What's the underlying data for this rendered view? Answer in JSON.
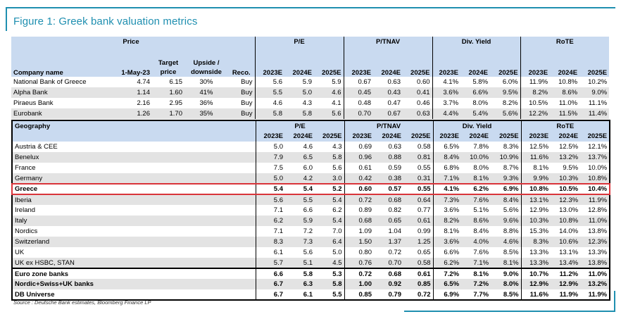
{
  "title": "Figure 1: Greek bank valuation metrics",
  "source": "Source : Deutsche Bank estimates, Bloomberg Finance LP",
  "accent_color": "#1f8fb0",
  "header_fill": "#c9daf0",
  "highlight_color": "#d9343a",
  "table1": {
    "group_headers": {
      "price": "Price",
      "pe": "P/E",
      "ptnav": "P/TNAV",
      "dy": "Div. Yield",
      "rote": "RoTE"
    },
    "col_headers": {
      "company": "Company name",
      "date": "1-May-23",
      "target": "Target price",
      "upside": "Upside / downside",
      "reco": "Reco.",
      "years": [
        "2023E",
        "2024E",
        "2025E"
      ]
    },
    "rows": [
      {
        "name": "National Bank of Greece",
        "price": "4.74",
        "target": "6.15",
        "upside": "30%",
        "reco": "Buy",
        "pe": [
          "5.6",
          "5.9",
          "5.9"
        ],
        "ptnav": [
          "0.67",
          "0.63",
          "0.60"
        ],
        "dy": [
          "4.1%",
          "5.8%",
          "6.0%"
        ],
        "rote": [
          "11.9%",
          "10.8%",
          "10.2%"
        ]
      },
      {
        "name": "Alpha Bank",
        "price": "1.14",
        "target": "1.60",
        "upside": "41%",
        "reco": "Buy",
        "pe": [
          "5.5",
          "5.0",
          "4.6"
        ],
        "ptnav": [
          "0.45",
          "0.43",
          "0.41"
        ],
        "dy": [
          "3.6%",
          "6.6%",
          "9.5%"
        ],
        "rote": [
          "8.2%",
          "8.6%",
          "9.0%"
        ]
      },
      {
        "name": "Piraeus Bank",
        "price": "2.16",
        "target": "2.95",
        "upside": "36%",
        "reco": "Buy",
        "pe": [
          "4.6",
          "4.3",
          "4.1"
        ],
        "ptnav": [
          "0.48",
          "0.47",
          "0.46"
        ],
        "dy": [
          "3.7%",
          "8.0%",
          "8.2%"
        ],
        "rote": [
          "10.5%",
          "11.0%",
          "11.1%"
        ]
      },
      {
        "name": "Eurobank",
        "price": "1.26",
        "target": "1.70",
        "upside": "35%",
        "reco": "Buy",
        "pe": [
          "5.8",
          "5.8",
          "5.6"
        ],
        "ptnav": [
          "0.70",
          "0.67",
          "0.63"
        ],
        "dy": [
          "4.4%",
          "5.4%",
          "5.6%"
        ],
        "rote": [
          "12.2%",
          "11.5%",
          "11.4%"
        ]
      }
    ]
  },
  "table2": {
    "geo_header": "Geography",
    "group_headers": {
      "pe": "P/E",
      "ptnav": "P/TNAV",
      "dy": "Div. Yield",
      "rote": "RoTE"
    },
    "years": [
      "2023E",
      "2024E",
      "2025E"
    ],
    "rows": [
      {
        "name": "Austria & CEE",
        "pe": [
          "5.0",
          "4.6",
          "4.3"
        ],
        "ptnav": [
          "0.69",
          "0.63",
          "0.58"
        ],
        "dy": [
          "6.5%",
          "7.8%",
          "8.3%"
        ],
        "rote": [
          "12.5%",
          "12.5%",
          "12.1%"
        ]
      },
      {
        "name": "Benelux",
        "pe": [
          "7.9",
          "6.5",
          "5.8"
        ],
        "ptnav": [
          "0.96",
          "0.88",
          "0.81"
        ],
        "dy": [
          "8.4%",
          "10.0%",
          "10.9%"
        ],
        "rote": [
          "11.6%",
          "13.2%",
          "13.7%"
        ]
      },
      {
        "name": "France",
        "pe": [
          "7.5",
          "6.0",
          "5.6"
        ],
        "ptnav": [
          "0.61",
          "0.59",
          "0.55"
        ],
        "dy": [
          "6.8%",
          "8.0%",
          "8.7%"
        ],
        "rote": [
          "8.1%",
          "9.5%",
          "10.0%"
        ]
      },
      {
        "name": "Germany",
        "pe": [
          "5.0",
          "4.2",
          "3.0"
        ],
        "ptnav": [
          "0.42",
          "0.38",
          "0.31"
        ],
        "dy": [
          "7.1%",
          "8.1%",
          "9.3%"
        ],
        "rote": [
          "9.9%",
          "10.3%",
          "10.8%"
        ]
      },
      {
        "name": "Greece",
        "pe": [
          "5.4",
          "5.4",
          "5.2"
        ],
        "ptnav": [
          "0.60",
          "0.57",
          "0.55"
        ],
        "dy": [
          "4.1%",
          "6.2%",
          "6.9%"
        ],
        "rote": [
          "10.8%",
          "10.5%",
          "10.4%"
        ]
      },
      {
        "name": "Iberia",
        "pe": [
          "5.6",
          "5.5",
          "5.4"
        ],
        "ptnav": [
          "0.72",
          "0.68",
          "0.64"
        ],
        "dy": [
          "7.3%",
          "7.6%",
          "8.4%"
        ],
        "rote": [
          "13.1%",
          "12.3%",
          "11.9%"
        ]
      },
      {
        "name": "Ireland",
        "pe": [
          "7.1",
          "6.6",
          "6.2"
        ],
        "ptnav": [
          "0.89",
          "0.82",
          "0.77"
        ],
        "dy": [
          "3.6%",
          "5.1%",
          "5.6%"
        ],
        "rote": [
          "12.9%",
          "13.0%",
          "12.8%"
        ]
      },
      {
        "name": "Italy",
        "pe": [
          "6.2",
          "5.9",
          "5.4"
        ],
        "ptnav": [
          "0.68",
          "0.65",
          "0.61"
        ],
        "dy": [
          "8.2%",
          "8.6%",
          "9.6%"
        ],
        "rote": [
          "10.3%",
          "10.8%",
          "11.0%"
        ]
      },
      {
        "name": "Nordics",
        "pe": [
          "7.1",
          "7.2",
          "7.0"
        ],
        "ptnav": [
          "1.09",
          "1.04",
          "0.99"
        ],
        "dy": [
          "8.1%",
          "8.4%",
          "8.8%"
        ],
        "rote": [
          "15.3%",
          "14.0%",
          "13.8%"
        ]
      },
      {
        "name": "Switzerland",
        "pe": [
          "8.3",
          "7.3",
          "6.4"
        ],
        "ptnav": [
          "1.50",
          "1.37",
          "1.25"
        ],
        "dy": [
          "3.6%",
          "4.0%",
          "4.6%"
        ],
        "rote": [
          "8.3%",
          "10.6%",
          "12.3%"
        ]
      },
      {
        "name": "UK",
        "pe": [
          "6.1",
          "5.6",
          "5.0"
        ],
        "ptnav": [
          "0.80",
          "0.72",
          "0.65"
        ],
        "dy": [
          "6.6%",
          "7.6%",
          "8.5%"
        ],
        "rote": [
          "13.3%",
          "13.1%",
          "13.3%"
        ]
      },
      {
        "name": "UK ex HSBC, STAN",
        "pe": [
          "5.7",
          "5.1",
          "4.5"
        ],
        "ptnav": [
          "0.76",
          "0.70",
          "0.58"
        ],
        "dy": [
          "6.2%",
          "7.1%",
          "8.1%"
        ],
        "rote": [
          "13.3%",
          "13.4%",
          "13.8%"
        ]
      }
    ],
    "summary_rows": [
      {
        "name": "Euro zone banks",
        "pe": [
          "6.6",
          "5.8",
          "5.3"
        ],
        "ptnav": [
          "0.72",
          "0.68",
          "0.61"
        ],
        "dy": [
          "7.2%",
          "8.1%",
          "9.0%"
        ],
        "rote": [
          "10.7%",
          "11.2%",
          "11.0%"
        ]
      },
      {
        "name": "Nordic+Swiss+UK banks",
        "pe": [
          "6.7",
          "6.3",
          "5.8"
        ],
        "ptnav": [
          "1.00",
          "0.92",
          "0.85"
        ],
        "dy": [
          "6.5%",
          "7.2%",
          "8.0%"
        ],
        "rote": [
          "12.9%",
          "12.9%",
          "13.2%"
        ]
      },
      {
        "name": "DB Universe",
        "pe": [
          "6.7",
          "6.1",
          "5.5"
        ],
        "ptnav": [
          "0.85",
          "0.79",
          "0.72"
        ],
        "dy": [
          "6.9%",
          "7.7%",
          "8.5%"
        ],
        "rote": [
          "11.6%",
          "11.9%",
          "11.9%"
        ]
      }
    ]
  }
}
